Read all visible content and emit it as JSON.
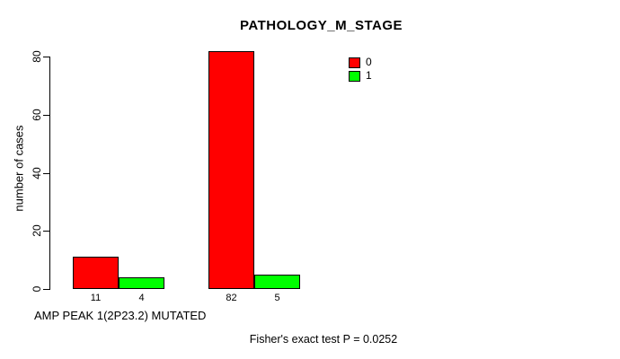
{
  "chart_data": {
    "type": "bar",
    "title": "PATHOLOGY_M_STAGE",
    "ylabel": "number of cases",
    "xlabel": "AMP PEAK 1(2P23.2) MUTATED",
    "annotation": "Fisher's exact test P = 0.0252",
    "ylim": [
      0,
      80
    ],
    "yticks": [
      0,
      20,
      40,
      60,
      80
    ],
    "grid": false,
    "legend_position": "top-right",
    "legend": [
      {
        "label": "0",
        "color": "#ff0000"
      },
      {
        "label": "1",
        "color": "#00ff00"
      }
    ],
    "series": [
      {
        "name": "0",
        "color": "#ff0000",
        "values": [
          11,
          82
        ]
      },
      {
        "name": "1",
        "color": "#00ff00",
        "values": [
          4,
          5
        ]
      }
    ],
    "bar_border_color": "#000000",
    "background": "#ffffff"
  }
}
